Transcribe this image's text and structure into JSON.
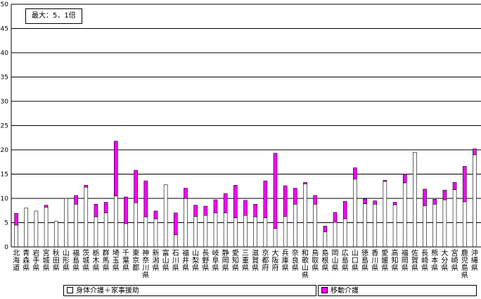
{
  "chart_data": {
    "type": "bar",
    "stacked": true,
    "note": "最大：5．1倍",
    "ylim": [
      0,
      50
    ],
    "yticks": [
      0,
      5,
      10,
      15,
      20,
      25,
      30,
      35,
      40,
      45,
      50
    ],
    "grid": true,
    "legend_position": "bottom",
    "categories": [
      "北海道",
      "青森県",
      "岩手県",
      "宮城県",
      "秋田県",
      "山形県",
      "福島県",
      "茨城県",
      "栃木県",
      "群馬県",
      "埼玉県",
      "千葉県",
      "東京都",
      "神奈川県",
      "新潟県",
      "富山県",
      "石川県",
      "福井県",
      "山梨県",
      "長野県",
      "岐阜県",
      "静岡県",
      "愛知県",
      "三重県",
      "滋賀県",
      "京都府",
      "大阪府",
      "兵庫県",
      "奈良県",
      "和歌山県",
      "鳥取県",
      "島根県",
      "岡山県",
      "広島県",
      "山口県",
      "徳島県",
      "香川県",
      "愛媛県",
      "高知県",
      "福岡県",
      "佐賀県",
      "長崎県",
      "熊本県",
      "大分県",
      "宮崎県",
      "鹿児島県",
      "沖縄県"
    ],
    "series": [
      {
        "name": "身体介護＋家事援助",
        "color": "#ffffff",
        "values": [
          4.5,
          8,
          7.4,
          8.2,
          5.3,
          10,
          8.8,
          12.3,
          6.2,
          7,
          10.5,
          4.8,
          9.1,
          6.2,
          5.8,
          12.8,
          2.5,
          10,
          6.3,
          6.5,
          7,
          7,
          6,
          6.5,
          6.2,
          6,
          3.8,
          6.3,
          8.8,
          13,
          8.8,
          3.1,
          5.1,
          5.8,
          14,
          8.9,
          8.8,
          13.5,
          8.7,
          13.2,
          19.5,
          8.5,
          8.8,
          9.7,
          11.8,
          9.3,
          19
        ]
      },
      {
        "name": "移動介護",
        "color": "#ff00ff",
        "values": [
          2.4,
          0,
          0,
          0.4,
          0,
          0,
          1.8,
          0.4,
          2.6,
          2.2,
          11.3,
          5.5,
          6.7,
          7.4,
          1.6,
          0,
          4.5,
          2.1,
          2.3,
          1.9,
          2.7,
          4,
          6.7,
          3.1,
          2.6,
          7.6,
          15.5,
          6.3,
          3.3,
          0.3,
          1.8,
          1.2,
          2,
          3.6,
          2.3,
          1,
          0.7,
          0.2,
          0.5,
          1.8,
          0,
          3.4,
          1,
          2,
          1.5,
          7.3,
          1.2
        ]
      }
    ]
  }
}
